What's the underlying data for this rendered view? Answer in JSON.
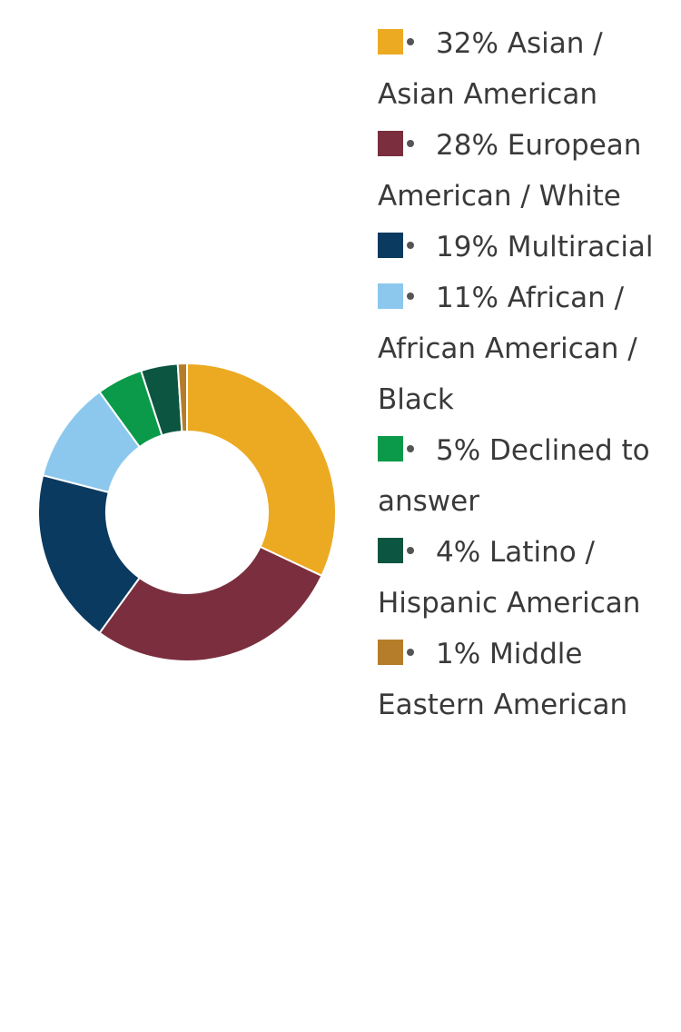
{
  "chart_data": {
    "type": "pie",
    "variant": "donut",
    "legend_position": "right",
    "categories": [
      "Asian / Asian American",
      "European American / White",
      "Multiracial",
      "African / African American / Black",
      "Declined to answer",
      "Latino / Hispanic American",
      "Middle Eastern American"
    ],
    "values": [
      32,
      28,
      19,
      11,
      5,
      4,
      1
    ],
    "unit": "%",
    "legend": [
      {
        "label": "32% Asian / Asian American",
        "value": 32,
        "color": "#ecaa22"
      },
      {
        "label": "28% European American / White",
        "value": 28,
        "color": "#7a2e3e"
      },
      {
        "label": "19% Multiracial",
        "value": 19,
        "color": "#0a3a60"
      },
      {
        "label": "11% African / African American / Black",
        "value": 11,
        "color": "#8cc8ee"
      },
      {
        "label": "5% Declined to answer",
        "value": 5,
        "color": "#0a9a4a"
      },
      {
        "label": "4% Latino / Hispanic American",
        "value": 4,
        "color": "#0c5540"
      },
      {
        "label": "1% Middle Eastern American",
        "value": 1,
        "color": "#b57d2a"
      }
    ]
  }
}
